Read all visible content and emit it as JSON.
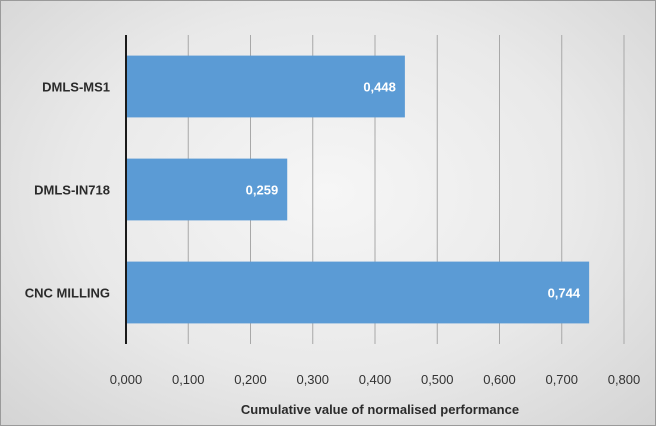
{
  "chart_data": {
    "type": "bar",
    "orientation": "horizontal",
    "categories": [
      "DMLS-MS1",
      "DMLS-IN718",
      "CNC MILLING"
    ],
    "values": [
      0.448,
      0.259,
      0.744
    ],
    "data_labels": [
      "0,448",
      "0,259",
      "0,744"
    ],
    "xlabel": "Cumulative value of normalised performance",
    "ylabel": "",
    "xlim": [
      0,
      0.8
    ],
    "x_ticks": [
      0,
      0.1,
      0.2,
      0.3,
      0.4,
      0.5,
      0.6,
      0.7,
      0.8
    ],
    "x_tick_labels": [
      "0,000",
      "0,100",
      "0,200",
      "0,300",
      "0,400",
      "0,500",
      "0,600",
      "0,700",
      "0,800"
    ],
    "grid": "vertical",
    "legend": "none",
    "colors": {
      "bar": "#5b9bd5",
      "background": "#e8e8e8"
    }
  }
}
